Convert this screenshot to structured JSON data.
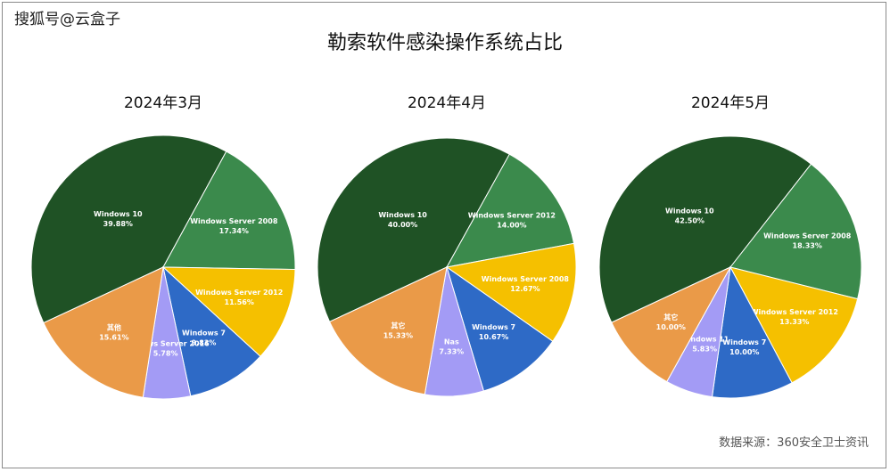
{
  "watermark": "搜狐号@云盒子",
  "title": "勒索软件感染操作系统占比",
  "source": "数据来源：360安全卫士资讯",
  "chart_data": [
    {
      "type": "pie",
      "title": "2024年3月",
      "slices": [
        {
          "label": "Windows 10",
          "value": 39.88,
          "display": "39.88%",
          "color": "#1f5225"
        },
        {
          "label": "Windows Server 2008",
          "value": 17.34,
          "display": "17.34%",
          "color": "#3b8a4c"
        },
        {
          "label": "Windows Server 2012",
          "value": 11.56,
          "display": "11.56%",
          "color": "#f5c000"
        },
        {
          "label": "Windows 7",
          "value": 9.83,
          "display": "9.83%",
          "color": "#2e6ac6"
        },
        {
          "label": "Windows Server 2016",
          "value": 5.78,
          "display": "5.78%",
          "color": "#a39bf5"
        },
        {
          "label": "其他",
          "value": 15.61,
          "display": "15.61%",
          "color": "#ea9a48"
        }
      ]
    },
    {
      "type": "pie",
      "title": "2024年4月",
      "slices": [
        {
          "label": "Windows 10",
          "value": 40.0,
          "display": "40.00%",
          "color": "#1f5225"
        },
        {
          "label": "Windows Server 2012",
          "value": 14.0,
          "display": "14.00%",
          "color": "#3b8a4c"
        },
        {
          "label": "Windows Server 2008",
          "value": 12.67,
          "display": "12.67%",
          "color": "#f5c000"
        },
        {
          "label": "Windows 7",
          "value": 10.67,
          "display": "10.67%",
          "color": "#2e6ac6"
        },
        {
          "label": "Nas",
          "value": 7.33,
          "display": "7.33%",
          "color": "#a39bf5"
        },
        {
          "label": "其它",
          "value": 15.33,
          "display": "15.33%",
          "color": "#ea9a48"
        }
      ]
    },
    {
      "type": "pie",
      "title": "2024年5月",
      "slices": [
        {
          "label": "Windows 10",
          "value": 42.5,
          "display": "42.50%",
          "color": "#1f5225"
        },
        {
          "label": "Windows Server 2008",
          "value": 18.33,
          "display": "18.33%",
          "color": "#3b8a4c"
        },
        {
          "label": "Windows Server 2012",
          "value": 13.33,
          "display": "13.33%",
          "color": "#f5c000"
        },
        {
          "label": "Windows 7",
          "value": 10.0,
          "display": "10.00%",
          "color": "#2e6ac6"
        },
        {
          "label": "Windows 11",
          "value": 5.83,
          "display": "5.83%",
          "color": "#a39bf5"
        },
        {
          "label": "其它",
          "value": 10.0,
          "display": "10.00%",
          "color": "#ea9a48"
        }
      ]
    }
  ]
}
